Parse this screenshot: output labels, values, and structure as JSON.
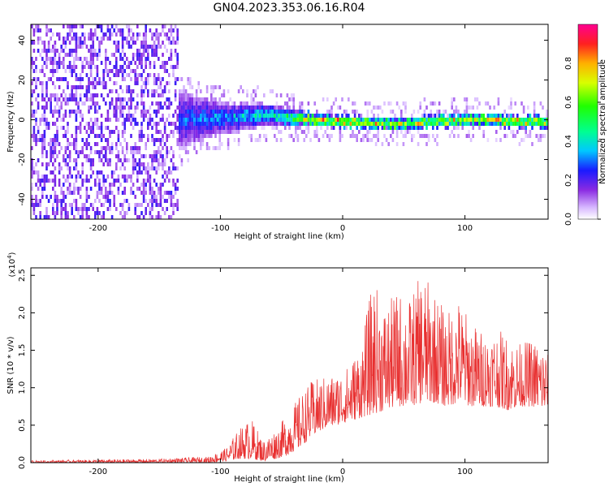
{
  "title": "GN04.2023.353.06.16.R04",
  "chart_data": [
    {
      "type": "heatmap",
      "xlabel": "Height of straight line (km)",
      "ylabel": "Frequency (Hz)",
      "xlim": [
        -255,
        168
      ],
      "ylim": [
        -50,
        48
      ],
      "x_ticks": [
        -200,
        -100,
        0,
        100
      ],
      "x_tick_labels": [
        "-200",
        "-100",
        "0",
        "100"
      ],
      "y_ticks": [
        -40,
        -20,
        0,
        20,
        40
      ],
      "y_tick_labels": [
        "-40",
        "-20",
        "0",
        "20",
        "40"
      ],
      "colorbar": {
        "label": "Normalized spectral amplitude",
        "range": [
          0,
          1
        ],
        "ticks": [
          0.0,
          0.2,
          0.4,
          0.6,
          0.8
        ],
        "tick_labels": [
          "0.0",
          "0.2",
          "0.4",
          "0.6",
          "0.8"
        ]
      },
      "description_points": [
        {
          "x": -250,
          "freq_center": 0,
          "freq_spread": 48,
          "amplitude": 0.15
        },
        {
          "x": -200,
          "freq_center": 0,
          "freq_spread": 48,
          "amplitude": 0.15
        },
        {
          "x": -160,
          "freq_center": 0,
          "freq_spread": 20,
          "amplitude": 0.25
        },
        {
          "x": -100,
          "freq_center": 2,
          "freq_spread": 8,
          "amplitude": 0.35
        },
        {
          "x": -60,
          "freq_center": 3,
          "freq_spread": 5,
          "amplitude": 0.45
        },
        {
          "x": -20,
          "freq_center": 1,
          "freq_spread": 3,
          "amplitude": 0.8
        },
        {
          "x": 0,
          "freq_center": 0,
          "freq_spread": 3,
          "amplitude": 0.85
        },
        {
          "x": 50,
          "freq_center": -1,
          "freq_spread": 3,
          "amplitude": 0.75
        },
        {
          "x": 100,
          "freq_center": 1,
          "freq_spread": 3,
          "amplitude": 0.8
        },
        {
          "x": 168,
          "freq_center": 0,
          "freq_spread": 3,
          "amplitude": 0.75
        }
      ]
    },
    {
      "type": "line",
      "xlabel": "Height of straight line (km)",
      "ylabel": "SNR (10 * v/v)",
      "y_multiplier": "(x10⁴)",
      "y_multiplier_base": "(x10",
      "y_multiplier_exp": "4",
      "y_multiplier_close": ")",
      "xlim": [
        -255,
        168
      ],
      "ylim": [
        0,
        2.6
      ],
      "x_ticks": [
        -200,
        -100,
        0,
        100
      ],
      "x_tick_labels": [
        "-200",
        "-100",
        "0",
        "100"
      ],
      "y_ticks": [
        0.0,
        0.5,
        1.0,
        1.5,
        2.0,
        2.5
      ],
      "y_tick_labels": [
        "0.0",
        "0.5",
        "1.0",
        "1.5",
        "2.0",
        "2.5"
      ],
      "color": "#e83030",
      "envelope": {
        "x": [
          -255,
          -200,
          -150,
          -110,
          -95,
          -85,
          -75,
          -65,
          -55,
          -45,
          -35,
          -25,
          -15,
          -5,
          5,
          15,
          25,
          35,
          45,
          55,
          65,
          75,
          85,
          95,
          105,
          115,
          125,
          135,
          145,
          155,
          168
        ],
        "low": [
          0.0,
          0.0,
          0.0,
          0.0,
          0.02,
          0.05,
          0.05,
          0.02,
          0.05,
          0.1,
          0.2,
          0.35,
          0.45,
          0.5,
          0.55,
          0.6,
          0.65,
          0.7,
          0.75,
          0.75,
          0.8,
          0.8,
          0.75,
          0.8,
          0.75,
          0.75,
          0.75,
          0.7,
          0.75,
          0.75,
          0.7
        ],
        "high": [
          0.03,
          0.04,
          0.05,
          0.08,
          0.2,
          0.45,
          0.6,
          0.3,
          0.45,
          0.65,
          0.9,
          1.1,
          1.15,
          1.2,
          1.3,
          1.6,
          2.45,
          2.1,
          2.3,
          2.2,
          2.55,
          2.3,
          2.0,
          2.2,
          1.9,
          1.75,
          1.8,
          1.7,
          1.6,
          1.65,
          1.55
        ]
      }
    }
  ]
}
